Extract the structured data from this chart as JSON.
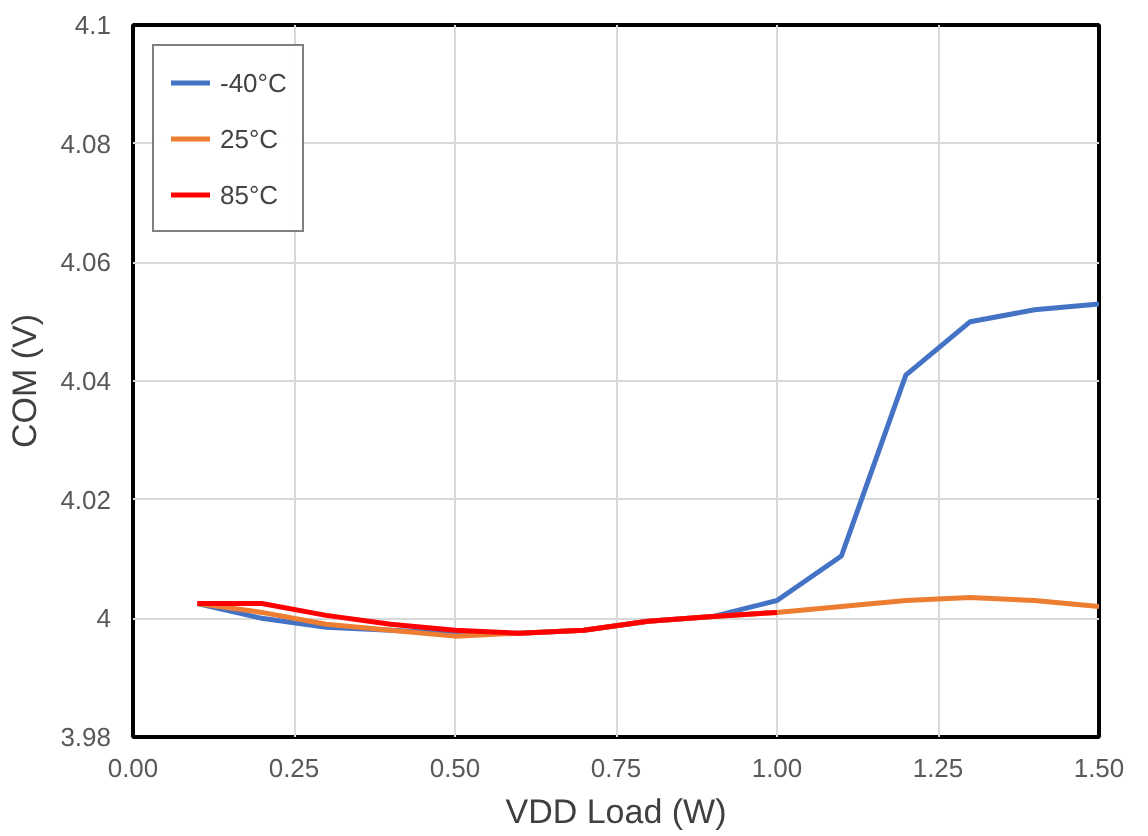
{
  "chart_data": {
    "type": "line",
    "xlabel": "VDD Load (W)",
    "ylabel": "COM (V)",
    "x": [
      0.1,
      0.2,
      0.3,
      0.4,
      0.5,
      0.6,
      0.7,
      0.8,
      0.9,
      1.0,
      1.1,
      1.2,
      1.3,
      1.4,
      1.5
    ],
    "series": [
      {
        "name": "-40°C",
        "color": "#4472c4",
        "values": [
          4.0025,
          4.0,
          3.9985,
          3.998,
          3.9975,
          3.9975,
          3.998,
          3.9995,
          4.0003,
          4.003,
          4.0105,
          4.041,
          4.05,
          4.052,
          4.053
        ]
      },
      {
        "name": "25°C",
        "color": "#ed7d31",
        "values": [
          4.0025,
          4.001,
          3.999,
          3.998,
          3.997,
          3.9975,
          3.998,
          3.9995,
          4.0003,
          4.001,
          4.002,
          4.003,
          4.0035,
          4.003,
          4.002
        ]
      },
      {
        "name": "85°C",
        "color": "#ff0000",
        "values": [
          4.0025,
          4.0025,
          4.0005,
          3.999,
          3.998,
          3.9975,
          3.998,
          3.9995,
          4.0003,
          4.001,
          null,
          null,
          null,
          null,
          null
        ]
      }
    ],
    "xlim": [
      0,
      1.5
    ],
    "ylim": [
      3.98,
      4.1
    ],
    "xticks": [
      {
        "value": 0,
        "label": "0.00"
      },
      {
        "value": 0.25,
        "label": "0.25"
      },
      {
        "value": 0.5,
        "label": "0.50"
      },
      {
        "value": 0.75,
        "label": "0.75"
      },
      {
        "value": 1,
        "label": "1.00"
      },
      {
        "value": 1.25,
        "label": "1.25"
      },
      {
        "value": 1.5,
        "label": "1.50"
      }
    ],
    "yticks": [
      3.98,
      {
        "value": 4,
        "label": "4"
      },
      4.02,
      4.04,
      4.06,
      4.08,
      4.1
    ],
    "grid": true,
    "legend": "top left",
    "line_style": "solid",
    "marker": "none"
  }
}
